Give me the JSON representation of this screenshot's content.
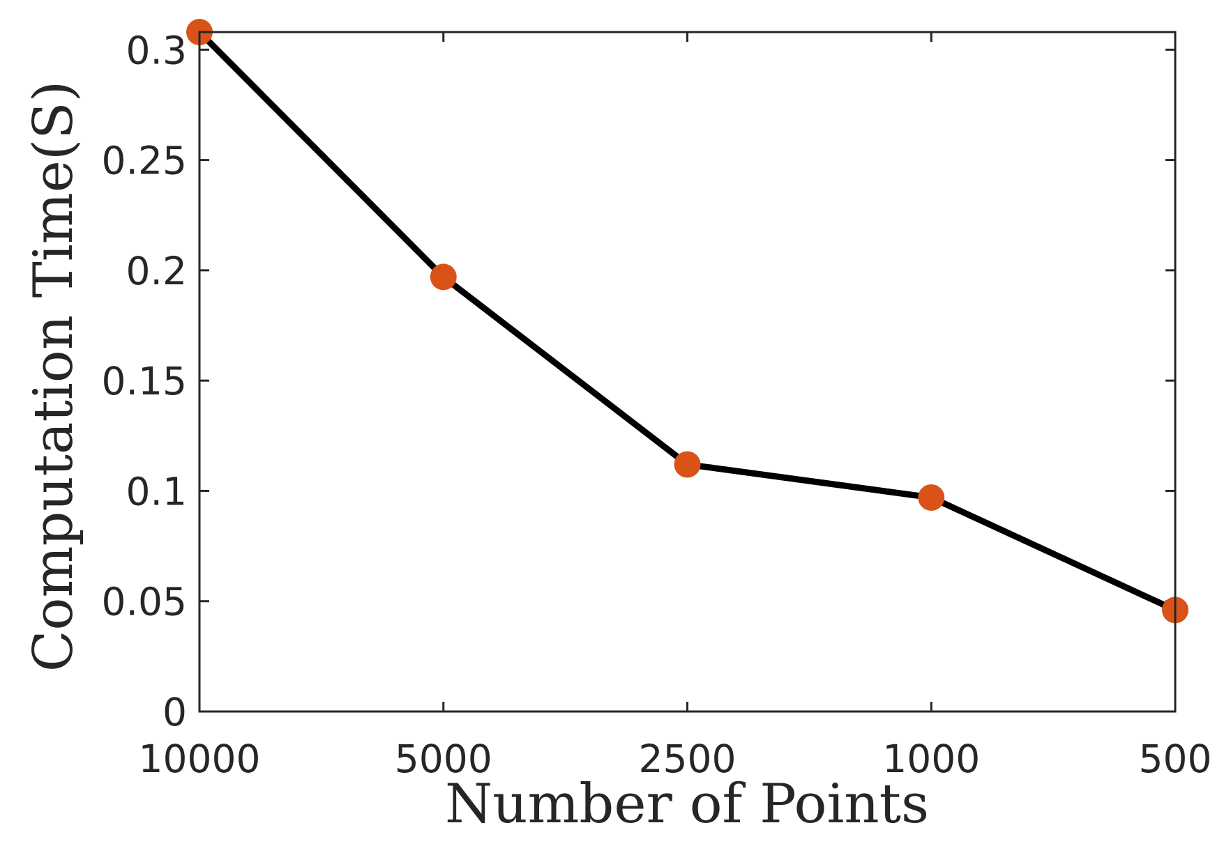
{
  "chart_data": {
    "type": "line",
    "title": "",
    "xlabel": "Number of Points",
    "ylabel": "Computation Time(S)",
    "categories": [
      "10000",
      "5000",
      "2500",
      "1000",
      "500"
    ],
    "series": [
      {
        "values": [
          0.308,
          0.197,
          0.112,
          0.097,
          0.046
        ]
      }
    ],
    "ylim": [
      0,
      0.308
    ],
    "yticks": [
      0,
      0.05,
      0.1,
      0.15,
      0.2,
      0.25,
      0.3
    ],
    "ytick_labels": [
      "0",
      "0.05",
      "0.1",
      "0.15",
      "0.2",
      "0.25",
      "0.3"
    ],
    "grid": false,
    "legend": "none",
    "colors": {
      "line": "#000000",
      "marker": "#D95319",
      "axes": "#262626"
    }
  }
}
